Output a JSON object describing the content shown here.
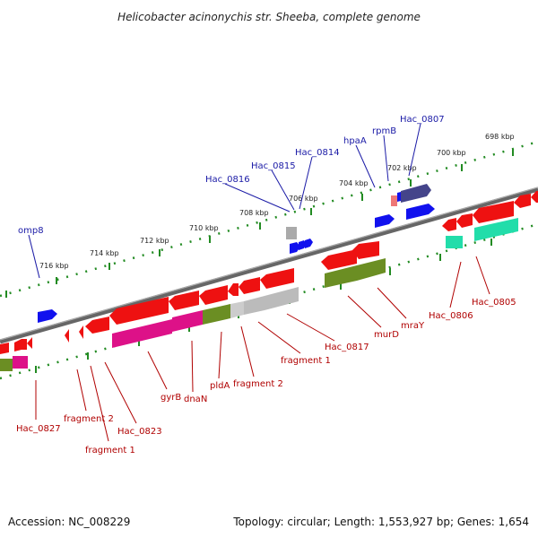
{
  "title": "Helicobacter acinonychis str. Sheeba, complete genome",
  "footer": {
    "accession": "Accession: NC_008229",
    "summary": "Topology: circular; Length: 1,553,927 bp; Genes: 1,654"
  },
  "ticks": [
    "716 kbp",
    "714 kbp",
    "712 kbp",
    "710 kbp",
    "708 kbp",
    "706 kbp",
    "704 kbp",
    "702 kbp",
    "700 kbp",
    "698 kbp"
  ],
  "labels_top": [
    "omp8",
    "Hac_0816",
    "Hac_0815",
    "Hac_0814",
    "hpaA",
    "rpmB",
    "Hac_0807"
  ],
  "labels_bottom": [
    "Hac_0827",
    "fragment 2",
    "fragment 1",
    "Hac_0823",
    "gyrB",
    "dnaN",
    "pldA",
    "fragment 2",
    "fragment 1",
    "Hac_0817",
    "murD",
    "mraY",
    "Hac_0806",
    "Hac_0805"
  ],
  "colors": {
    "backbone": "#777777",
    "red": "#ee1111",
    "blue": "#1111ee",
    "magenta": "#dd1188",
    "olive": "#6b8e23",
    "grey": "#bbbbbb",
    "teal": "#22ddaa",
    "navy": "#44448a",
    "pink": "#ee7777",
    "top_label": "#1a1aa6",
    "bottom_label": "#b00000",
    "dots": "#228b22"
  }
}
